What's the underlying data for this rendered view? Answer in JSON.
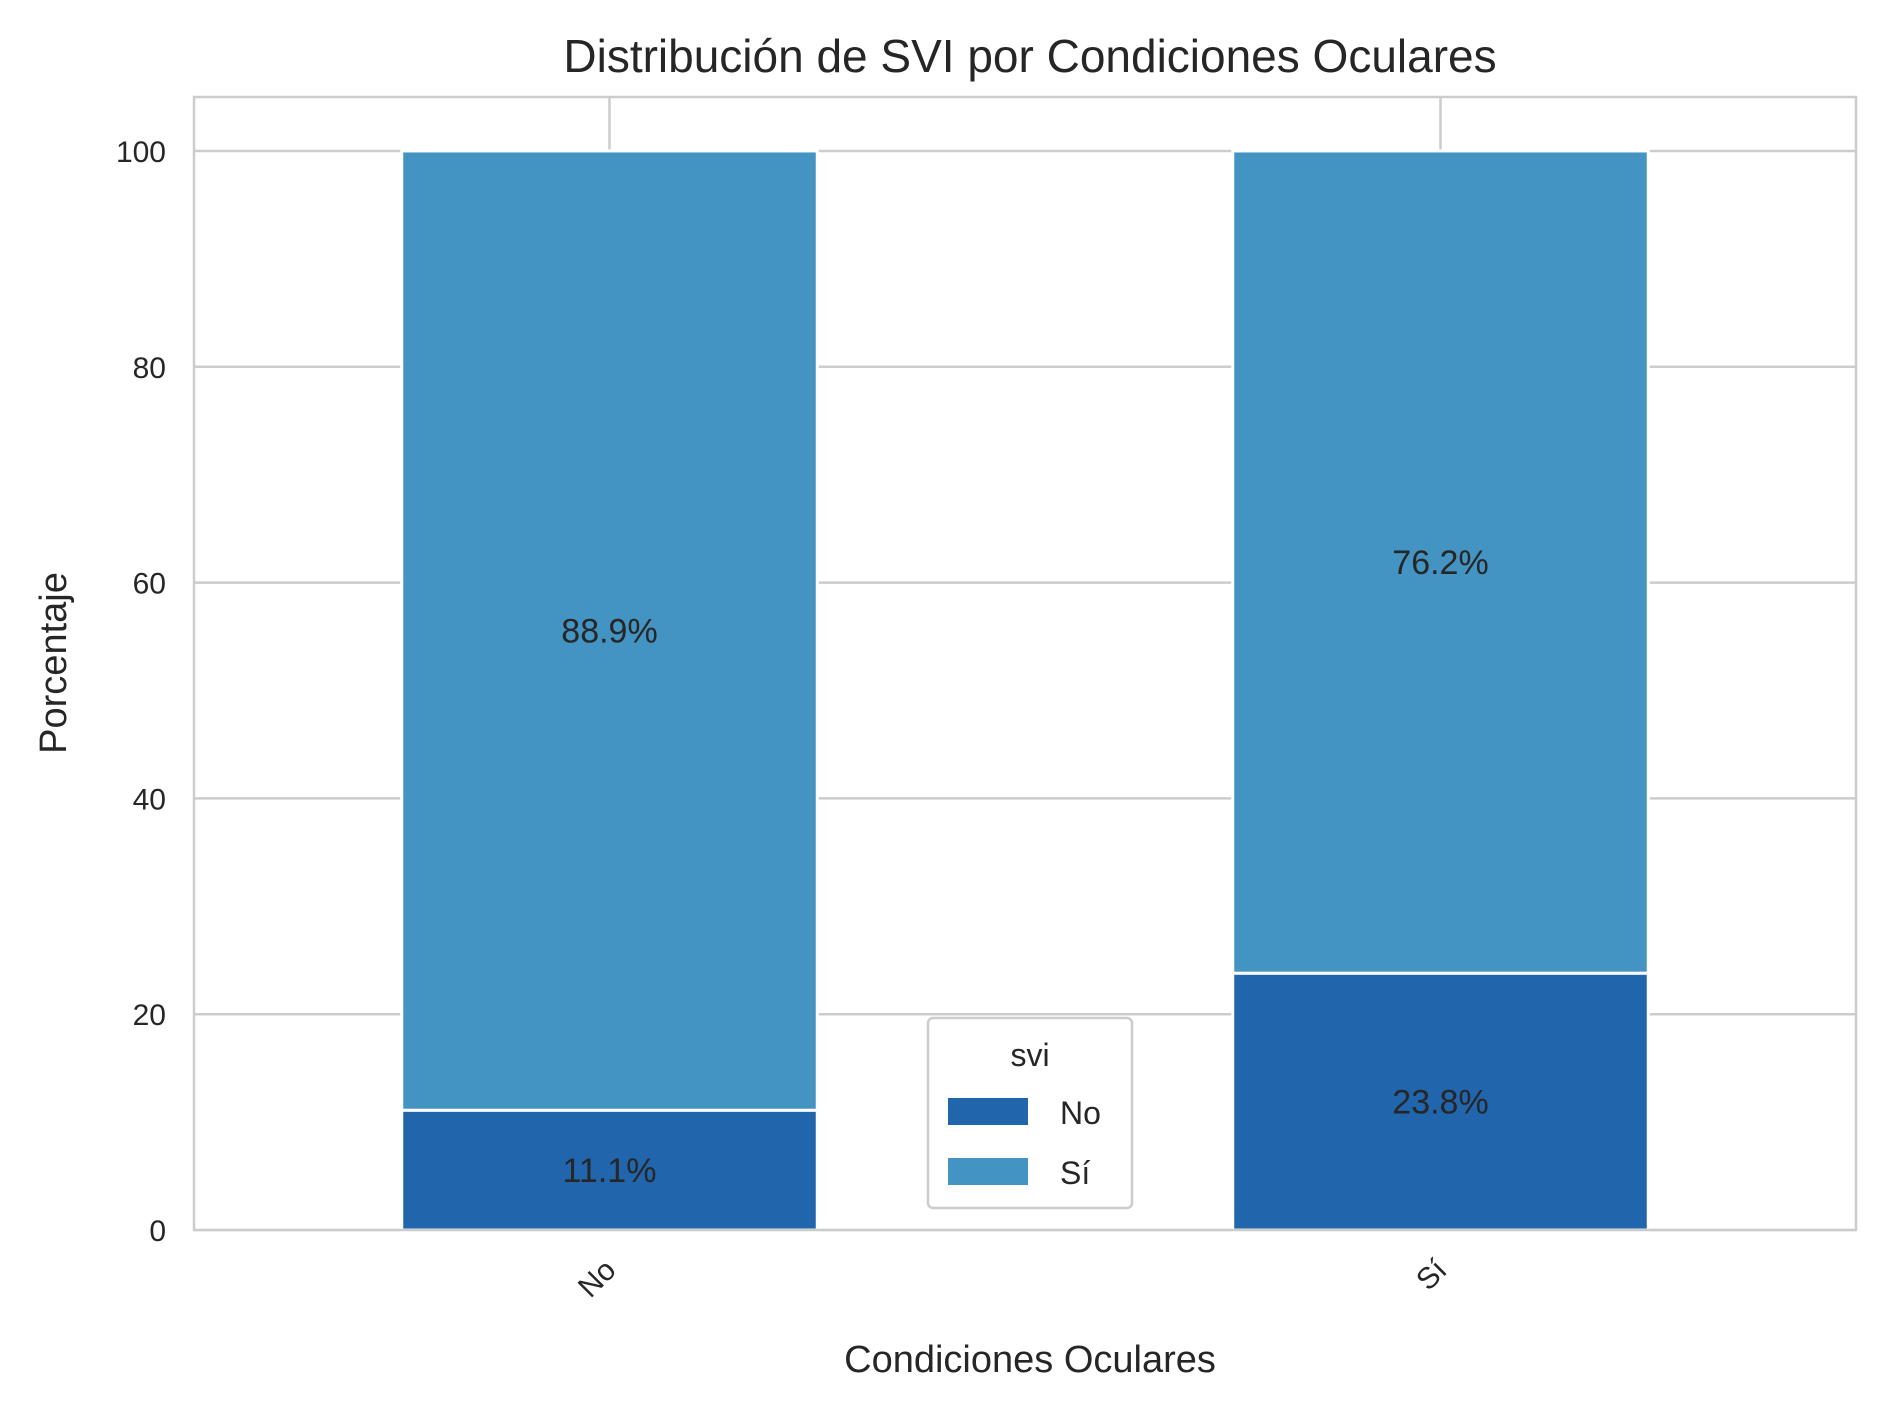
{
  "chart_data": {
    "type": "bar",
    "stacked": true,
    "title": "Distribución de SVI por Condiciones Oculares",
    "xlabel": "Condiciones Oculares",
    "ylabel": "Porcentaje",
    "categories": [
      "No",
      "Sí"
    ],
    "series": [
      {
        "name": "No",
        "values": [
          11.1,
          23.8
        ],
        "color": "#2165ac",
        "labels": [
          "11.1%",
          "23.8%"
        ]
      },
      {
        "name": "Sí",
        "values": [
          88.9,
          76.2
        ],
        "color": "#4393c3",
        "labels": [
          "88.9%",
          "76.2%"
        ]
      }
    ],
    "ylim": [
      0,
      105
    ],
    "yticks": [
      0,
      20,
      40,
      60,
      80,
      100
    ],
    "grid": true,
    "legend": {
      "title": "svi",
      "placement": "lower-center"
    }
  }
}
